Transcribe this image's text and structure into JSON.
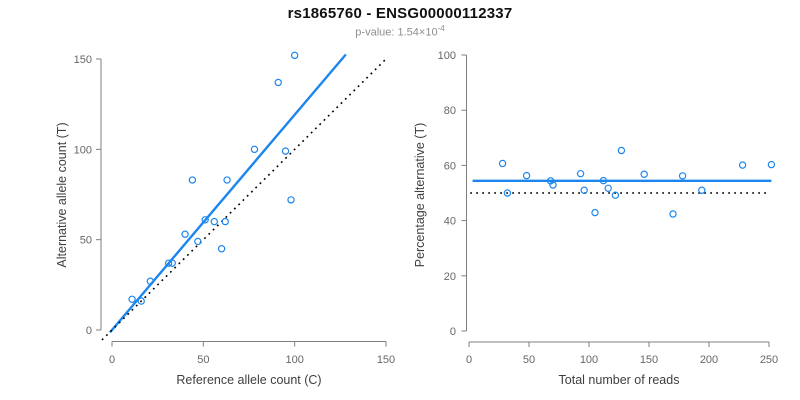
{
  "header": {
    "title": "rs1865760 - ENSG00000112337",
    "subtitle_prefix": "p-value: 1.54×10",
    "subtitle_exponent": "-4"
  },
  "colors": {
    "accent_blue": "#1C86EE",
    "dotted_black": "#000000",
    "axis_gray": "#7f7f7f",
    "tick_label_gray": "#666666"
  },
  "chart_data": [
    {
      "type": "scatter",
      "panel": "left",
      "xlabel": "Reference allele count (C)",
      "ylabel": "Alternative allele count (T)",
      "xlim": [
        0,
        150
      ],
      "ylim": [
        0,
        150
      ],
      "xticks": [
        0,
        50,
        100,
        150
      ],
      "yticks": [
        0,
        50,
        100,
        150
      ],
      "grid": false,
      "legend": "none",
      "points": [
        [
          11,
          17
        ],
        [
          16,
          16
        ],
        [
          21,
          27
        ],
        [
          31,
          37
        ],
        [
          33,
          37
        ],
        [
          40,
          53
        ],
        [
          47,
          49
        ],
        [
          51,
          61
        ],
        [
          56,
          60
        ],
        [
          60,
          45
        ],
        [
          62,
          60
        ],
        [
          44,
          83
        ],
        [
          63,
          83
        ],
        [
          78,
          100
        ],
        [
          95,
          99
        ],
        [
          98,
          72
        ],
        [
          91,
          137
        ],
        [
          100,
          152
        ]
      ],
      "lines": [
        {
          "name": "fit-line",
          "slope": 1.19,
          "intercept": 0,
          "x1": -1.1,
          "y1": -1.3,
          "x2": 128,
          "y2": 152.5,
          "style": "solid",
          "color_key": "accent_blue",
          "width": 2.4
        },
        {
          "name": "identity-line",
          "slope": 1,
          "intercept": 0,
          "x1": -5.5,
          "y1": -5.5,
          "x2": 151,
          "y2": 151,
          "style": "dotted",
          "color_key": "dotted_black",
          "width": 1.6
        }
      ]
    },
    {
      "type": "scatter",
      "panel": "right",
      "xlabel": "Total number of reads",
      "ylabel": "Percentage alternative (T)",
      "xlim": [
        0,
        250
      ],
      "ylim": [
        0,
        100
      ],
      "xticks": [
        0,
        50,
        100,
        150,
        200,
        250
      ],
      "yticks": [
        0,
        20,
        40,
        60,
        80,
        100
      ],
      "grid": false,
      "legend": "none",
      "points": [
        [
          28,
          60.7
        ],
        [
          32,
          50.0
        ],
        [
          48,
          56.3
        ],
        [
          68,
          54.4
        ],
        [
          70,
          52.9
        ],
        [
          93,
          57.0
        ],
        [
          96,
          51.0
        ],
        [
          112,
          54.5
        ],
        [
          116,
          51.7
        ],
        [
          105,
          42.9
        ],
        [
          122,
          49.2
        ],
        [
          127,
          65.4
        ],
        [
          146,
          56.8
        ],
        [
          178,
          56.2
        ],
        [
          194,
          51.0
        ],
        [
          170,
          42.4
        ],
        [
          228,
          60.1
        ],
        [
          252,
          60.3
        ]
      ],
      "lines": [
        {
          "name": "mean-percentage-line",
          "value": 54.4,
          "x1": 3,
          "y1": 54.4,
          "x2": 252,
          "y2": 54.4,
          "style": "solid",
          "color_key": "accent_blue",
          "width": 2.4
        },
        {
          "name": "null-50pct-line",
          "value": 50,
          "x1": 1,
          "y1": 50,
          "x2": 249,
          "y2": 50,
          "style": "dotted",
          "color_key": "dotted_black",
          "width": 1.6
        }
      ]
    }
  ]
}
